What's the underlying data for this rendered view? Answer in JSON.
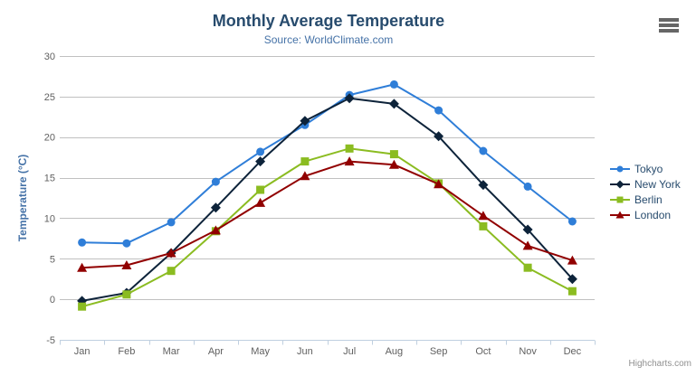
{
  "header": {
    "title": "Monthly Average Temperature",
    "subtitle": "Source: WorldClimate.com"
  },
  "credits": {
    "label": "Highcharts.com"
  },
  "icons": {
    "menu": "hamburger-icon"
  },
  "styles": {
    "background": "#FFFFFF",
    "title_color": "#274b6d",
    "subtitle_color": "#4572A7",
    "axis_label_color": "#606060",
    "axis_title_color": "#4572A7",
    "legend_text_color": "#274b6d",
    "credits_color": "#909090",
    "grid_color": "#C0C0C0",
    "axis_line_color": "#C0D0E0",
    "menu_icon_color": "#666666"
  },
  "chart_data": {
    "type": "line",
    "title": "Monthly Average Temperature",
    "subtitle": "Source: WorldClimate.com",
    "categories": [
      "Jan",
      "Feb",
      "Mar",
      "Apr",
      "May",
      "Jun",
      "Jul",
      "Aug",
      "Sep",
      "Oct",
      "Nov",
      "Dec"
    ],
    "xlabel": "",
    "ylabel": "Temperature (°C)",
    "ylim": [
      -5,
      30
    ],
    "ytick_interval": 5,
    "yticks": [
      -5,
      0,
      5,
      10,
      15,
      20,
      25,
      30
    ],
    "grid": true,
    "legend_position": "right",
    "series": [
      {
        "name": "Tokyo",
        "color": "#2f7ed8",
        "marker": "circle",
        "values": [
          7.0,
          6.9,
          9.5,
          14.5,
          18.2,
          21.5,
          25.2,
          26.5,
          23.3,
          18.3,
          13.9,
          9.6
        ]
      },
      {
        "name": "New York",
        "color": "#0d233a",
        "marker": "diamond",
        "values": [
          -0.2,
          0.8,
          5.7,
          11.3,
          17.0,
          22.0,
          24.8,
          24.1,
          20.1,
          14.1,
          8.6,
          2.5
        ]
      },
      {
        "name": "Berlin",
        "color": "#8bbc21",
        "marker": "square",
        "values": [
          -0.9,
          0.6,
          3.5,
          8.4,
          13.5,
          17.0,
          18.6,
          17.9,
          14.3,
          9.0,
          3.9,
          1.0
        ]
      },
      {
        "name": "London",
        "color": "#910000",
        "marker": "triangle",
        "values": [
          3.9,
          4.2,
          5.7,
          8.5,
          11.9,
          15.2,
          17.0,
          16.6,
          14.2,
          10.3,
          6.6,
          4.8
        ]
      }
    ]
  }
}
